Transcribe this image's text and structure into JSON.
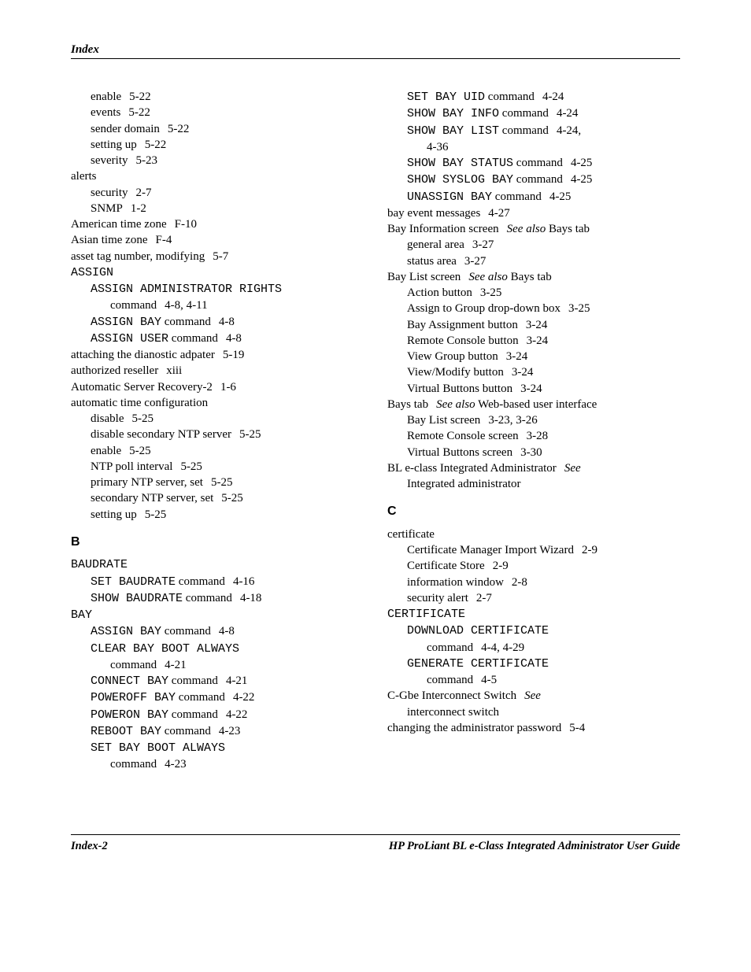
{
  "header": {
    "title": "Index"
  },
  "footer": {
    "left": "Index-2",
    "right": "HP ProLiant BL e-Class Integrated Administrator User Guide"
  },
  "left_col": [
    {
      "indent": 1,
      "parts": [
        {
          "t": "enable"
        },
        {
          "p": "5-22"
        }
      ]
    },
    {
      "indent": 1,
      "parts": [
        {
          "t": "events"
        },
        {
          "p": "5-22"
        }
      ]
    },
    {
      "indent": 1,
      "parts": [
        {
          "t": "sender domain"
        },
        {
          "p": "5-22"
        }
      ]
    },
    {
      "indent": 1,
      "parts": [
        {
          "t": "setting up"
        },
        {
          "p": "5-22"
        }
      ]
    },
    {
      "indent": 1,
      "parts": [
        {
          "t": "severity"
        },
        {
          "p": "5-23"
        }
      ]
    },
    {
      "indent": 0,
      "parts": [
        {
          "t": "alerts"
        }
      ]
    },
    {
      "indent": 1,
      "parts": [
        {
          "t": "security"
        },
        {
          "p": "2-7"
        }
      ]
    },
    {
      "indent": 1,
      "parts": [
        {
          "t": "SNMP"
        },
        {
          "p": "1-2"
        }
      ]
    },
    {
      "indent": 0,
      "parts": [
        {
          "t": "American time zone"
        },
        {
          "p": "F-10"
        }
      ]
    },
    {
      "indent": 0,
      "parts": [
        {
          "t": "Asian time zone"
        },
        {
          "p": "F-4"
        }
      ]
    },
    {
      "indent": 0,
      "parts": [
        {
          "t": "asset tag number, modifying"
        },
        {
          "p": "5-7"
        }
      ]
    },
    {
      "indent": 0,
      "parts": [
        {
          "t": "ASSIGN",
          "mono": true
        }
      ]
    },
    {
      "indent": 1,
      "parts": [
        {
          "t": "ASSIGN ADMINISTRATOR RIGHTS",
          "mono": true
        }
      ]
    },
    {
      "indent": 2,
      "parts": [
        {
          "t": "command"
        },
        {
          "p": "4-8, 4-11"
        }
      ]
    },
    {
      "indent": 1,
      "parts": [
        {
          "t": "ASSIGN BAY",
          "mono": true
        },
        {
          "t": " command"
        },
        {
          "p": "4-8"
        }
      ]
    },
    {
      "indent": 1,
      "parts": [
        {
          "t": "ASSIGN USER",
          "mono": true
        },
        {
          "t": " command"
        },
        {
          "p": "4-8"
        }
      ]
    },
    {
      "indent": 0,
      "parts": [
        {
          "t": "attaching the dianostic adpater"
        },
        {
          "p": "5-19"
        }
      ]
    },
    {
      "indent": 0,
      "parts": [
        {
          "t": "authorized reseller"
        },
        {
          "p": "xiii"
        }
      ]
    },
    {
      "indent": 0,
      "parts": [
        {
          "t": "Automatic Server Recovery-2"
        },
        {
          "p": "1-6"
        }
      ]
    },
    {
      "indent": 0,
      "parts": [
        {
          "t": "automatic time configuration"
        }
      ]
    },
    {
      "indent": 1,
      "parts": [
        {
          "t": "disable"
        },
        {
          "p": "5-25"
        }
      ]
    },
    {
      "indent": 1,
      "parts": [
        {
          "t": "disable secondary NTP server"
        },
        {
          "p": "5-25"
        }
      ]
    },
    {
      "indent": 1,
      "parts": [
        {
          "t": "enable"
        },
        {
          "p": "5-25"
        }
      ]
    },
    {
      "indent": 1,
      "parts": [
        {
          "t": "NTP poll interval"
        },
        {
          "p": "5-25"
        }
      ]
    },
    {
      "indent": 1,
      "parts": [
        {
          "t": "primary NTP server, set"
        },
        {
          "p": "5-25"
        }
      ]
    },
    {
      "indent": 1,
      "parts": [
        {
          "t": "secondary NTP server, set"
        },
        {
          "p": "5-25"
        }
      ]
    },
    {
      "indent": 1,
      "parts": [
        {
          "t": "setting up"
        },
        {
          "p": "5-25"
        }
      ]
    },
    {
      "section": "B"
    },
    {
      "indent": 0,
      "parts": [
        {
          "t": "BAUDRATE",
          "mono": true
        }
      ]
    },
    {
      "indent": 1,
      "parts": [
        {
          "t": "SET BAUDRATE",
          "mono": true
        },
        {
          "t": " command"
        },
        {
          "p": "4-16"
        }
      ]
    },
    {
      "indent": 1,
      "parts": [
        {
          "t": "SHOW BAUDRATE",
          "mono": true
        },
        {
          "t": " command"
        },
        {
          "p": "4-18"
        }
      ]
    },
    {
      "indent": 0,
      "parts": [
        {
          "t": "BAY",
          "mono": true
        }
      ]
    },
    {
      "indent": 1,
      "parts": [
        {
          "t": "ASSIGN BAY",
          "mono": true
        },
        {
          "t": " command"
        },
        {
          "p": "4-8"
        }
      ]
    },
    {
      "indent": 1,
      "parts": [
        {
          "t": "CLEAR BAY BOOT ALWAYS",
          "mono": true
        }
      ]
    },
    {
      "indent": 2,
      "parts": [
        {
          "t": "command"
        },
        {
          "p": "4-21"
        }
      ]
    },
    {
      "indent": 1,
      "parts": [
        {
          "t": "CONNECT BAY",
          "mono": true
        },
        {
          "t": " command"
        },
        {
          "p": "4-21"
        }
      ]
    },
    {
      "indent": 1,
      "parts": [
        {
          "t": "POWEROFF BAY",
          "mono": true
        },
        {
          "t": " command"
        },
        {
          "p": "4-22"
        }
      ]
    },
    {
      "indent": 1,
      "parts": [
        {
          "t": "POWERON BAY",
          "mono": true
        },
        {
          "t": " command"
        },
        {
          "p": "4-22"
        }
      ]
    },
    {
      "indent": 1,
      "parts": [
        {
          "t": "REBOOT BAY",
          "mono": true
        },
        {
          "t": " command"
        },
        {
          "p": "4-23"
        }
      ]
    },
    {
      "indent": 1,
      "parts": [
        {
          "t": "SET BAY BOOT ALWAYS",
          "mono": true
        }
      ]
    },
    {
      "indent": 2,
      "parts": [
        {
          "t": "command"
        },
        {
          "p": "4-23"
        }
      ]
    }
  ],
  "right_col": [
    {
      "indent": 1,
      "parts": [
        {
          "t": "SET BAY UID",
          "mono": true
        },
        {
          "t": " command"
        },
        {
          "p": "4-24"
        }
      ]
    },
    {
      "indent": 1,
      "parts": [
        {
          "t": "SHOW BAY INFO",
          "mono": true
        },
        {
          "t": " command"
        },
        {
          "p": "4-24"
        }
      ]
    },
    {
      "indent": 1,
      "parts": [
        {
          "t": "SHOW BAY LIST",
          "mono": true
        },
        {
          "t": " command"
        },
        {
          "p": "4-24,"
        }
      ]
    },
    {
      "indent": 2,
      "parts": [
        {
          "t": "4-36"
        }
      ]
    },
    {
      "indent": 1,
      "parts": [
        {
          "t": "SHOW BAY STATUS",
          "mono": true
        },
        {
          "t": " command"
        },
        {
          "p": "4-25"
        }
      ]
    },
    {
      "indent": 1,
      "parts": [
        {
          "t": "SHOW SYSLOG BAY",
          "mono": true
        },
        {
          "t": " command"
        },
        {
          "p": "4-25"
        }
      ]
    },
    {
      "indent": 1,
      "parts": [
        {
          "t": "UNASSIGN BAY",
          "mono": true
        },
        {
          "t": " command"
        },
        {
          "p": "4-25"
        }
      ]
    },
    {
      "indent": 0,
      "parts": [
        {
          "t": "bay event messages"
        },
        {
          "p": "4-27"
        }
      ]
    },
    {
      "indent": 0,
      "parts": [
        {
          "t": "Bay Information screen"
        },
        {
          "sep": true
        },
        {
          "t": "See also",
          "italic": true
        },
        {
          "t": " Bays tab"
        }
      ]
    },
    {
      "indent": 1,
      "parts": [
        {
          "t": "general area"
        },
        {
          "p": "3-27"
        }
      ]
    },
    {
      "indent": 1,
      "parts": [
        {
          "t": "status area"
        },
        {
          "p": "3-27"
        }
      ]
    },
    {
      "indent": 0,
      "parts": [
        {
          "t": "Bay List screen"
        },
        {
          "sep": true
        },
        {
          "t": "See also",
          "italic": true
        },
        {
          "t": " Bays tab"
        }
      ]
    },
    {
      "indent": 1,
      "parts": [
        {
          "t": "Action button"
        },
        {
          "p": "3-25"
        }
      ]
    },
    {
      "indent": 1,
      "parts": [
        {
          "t": "Assign to Group drop-down box"
        },
        {
          "p": "3-25"
        }
      ]
    },
    {
      "indent": 1,
      "parts": [
        {
          "t": "Bay Assignment button"
        },
        {
          "p": "3-24"
        }
      ]
    },
    {
      "indent": 1,
      "parts": [
        {
          "t": "Remote Console button"
        },
        {
          "p": "3-24"
        }
      ]
    },
    {
      "indent": 1,
      "parts": [
        {
          "t": "View Group button"
        },
        {
          "p": "3-24"
        }
      ]
    },
    {
      "indent": 1,
      "parts": [
        {
          "t": "View/Modify button"
        },
        {
          "p": "3-24"
        }
      ]
    },
    {
      "indent": 1,
      "parts": [
        {
          "t": "Virtual Buttons button"
        },
        {
          "p": "3-24"
        }
      ]
    },
    {
      "indent": 0,
      "parts": [
        {
          "t": "Bays tab"
        },
        {
          "sep": true
        },
        {
          "t": "See also",
          "italic": true
        },
        {
          "t": " Web-based user interface"
        }
      ]
    },
    {
      "indent": 1,
      "parts": [
        {
          "t": "Bay List screen"
        },
        {
          "p": "3-23, 3-26"
        }
      ]
    },
    {
      "indent": 1,
      "parts": [
        {
          "t": "Remote Console screen"
        },
        {
          "p": "3-28"
        }
      ]
    },
    {
      "indent": 1,
      "parts": [
        {
          "t": "Virtual Buttons screen"
        },
        {
          "p": "3-30"
        }
      ]
    },
    {
      "indent": 0,
      "parts": [
        {
          "t": "BL e-class Integrated Administrator"
        },
        {
          "sep": true
        },
        {
          "t": "See",
          "italic": true
        }
      ]
    },
    {
      "indent": 1,
      "parts": [
        {
          "t": "Integrated administrator"
        }
      ]
    },
    {
      "section": "C"
    },
    {
      "indent": 0,
      "parts": [
        {
          "t": "certificate"
        }
      ]
    },
    {
      "indent": 1,
      "parts": [
        {
          "t": "Certificate Manager Import Wizard"
        },
        {
          "p": "2-9"
        }
      ]
    },
    {
      "indent": 1,
      "parts": [
        {
          "t": "Certificate Store"
        },
        {
          "p": "2-9"
        }
      ]
    },
    {
      "indent": 1,
      "parts": [
        {
          "t": "information window"
        },
        {
          "p": "2-8"
        }
      ]
    },
    {
      "indent": 1,
      "parts": [
        {
          "t": "security alert"
        },
        {
          "p": "2-7"
        }
      ]
    },
    {
      "indent": 0,
      "parts": [
        {
          "t": "CERTIFICATE",
          "mono": true
        }
      ]
    },
    {
      "indent": 1,
      "parts": [
        {
          "t": "DOWNLOAD CERTIFICATE",
          "mono": true
        }
      ]
    },
    {
      "indent": 2,
      "parts": [
        {
          "t": "command"
        },
        {
          "p": "4-4, 4-29"
        }
      ]
    },
    {
      "indent": 1,
      "parts": [
        {
          "t": "GENERATE CERTIFICATE",
          "mono": true
        }
      ]
    },
    {
      "indent": 2,
      "parts": [
        {
          "t": "command"
        },
        {
          "p": "4-5"
        }
      ]
    },
    {
      "indent": 0,
      "parts": [
        {
          "t": "C-Gbe Interconnect Switch"
        },
        {
          "sep": true
        },
        {
          "t": "See",
          "italic": true
        }
      ]
    },
    {
      "indent": 1,
      "parts": [
        {
          "t": "interconnect switch"
        }
      ]
    },
    {
      "indent": 0,
      "parts": [
        {
          "t": "changing the administrator password"
        },
        {
          "p": "5-4"
        }
      ]
    }
  ]
}
